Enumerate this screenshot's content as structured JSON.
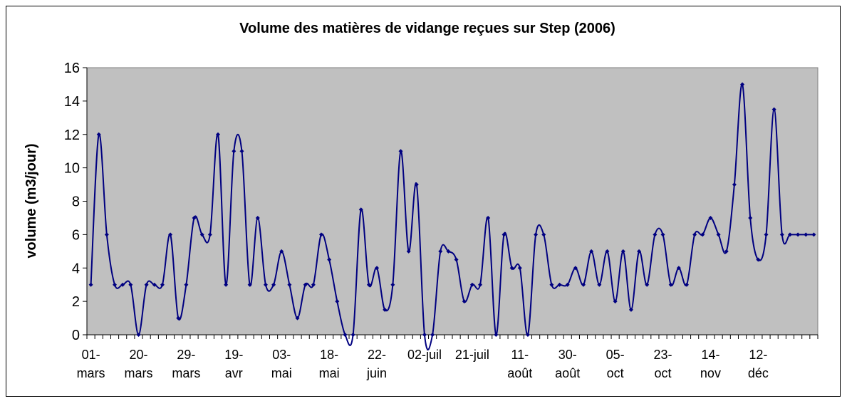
{
  "chart_data": {
    "type": "line",
    "title": "Volume des matières de vidange reçues sur Step (2006)",
    "y_label": "volume (m3/jour)",
    "categories": [
      "01- mars",
      null,
      null,
      null,
      null,
      null,
      "20- mars",
      null,
      null,
      null,
      null,
      null,
      "29- mars",
      null,
      null,
      null,
      null,
      null,
      "19- avr",
      null,
      null,
      null,
      null,
      null,
      "03- mai",
      null,
      null,
      null,
      null,
      null,
      "18- mai",
      null,
      null,
      null,
      null,
      null,
      "22- juin",
      null,
      null,
      null,
      null,
      null,
      "02-juil",
      null,
      null,
      null,
      null,
      null,
      "21-juil",
      null,
      null,
      null,
      null,
      null,
      "11- août",
      null,
      null,
      null,
      null,
      null,
      "30- août",
      null,
      null,
      null,
      null,
      null,
      "05- oct",
      null,
      null,
      null,
      null,
      null,
      "23- oct",
      null,
      null,
      null,
      null,
      null,
      "14- nov",
      null,
      null,
      null,
      null,
      null,
      "12- déc",
      null,
      null,
      null,
      null,
      null,
      null,
      null
    ],
    "series": [
      {
        "name": "volume",
        "color": "#000080",
        "values": [
          3,
          12,
          6,
          3,
          3,
          3,
          0,
          3,
          3,
          3,
          6,
          1,
          3,
          7,
          6,
          6,
          12,
          3,
          11,
          11,
          3,
          7,
          3,
          3,
          5,
          3,
          1,
          3,
          3,
          6,
          4.5,
          2,
          0,
          0,
          7.5,
          3,
          4,
          1.5,
          3,
          11,
          5,
          9,
          0,
          0,
          5,
          5,
          4.5,
          2,
          3,
          3,
          7,
          0,
          6,
          4,
          4,
          0,
          6,
          6,
          3,
          3,
          3,
          4,
          3,
          5,
          3,
          5,
          2,
          5,
          1.5,
          5,
          3,
          6,
          6,
          3,
          4,
          3,
          6,
          6,
          7,
          6,
          5,
          9,
          15,
          7,
          4.5,
          6,
          13.5,
          6,
          6,
          6,
          6,
          6
        ]
      }
    ],
    "ylim": [
      0,
      16
    ],
    "yticks": [
      0,
      2,
      4,
      6,
      8,
      10,
      12,
      14,
      16
    ],
    "plot_background": "#c0c0c0"
  }
}
